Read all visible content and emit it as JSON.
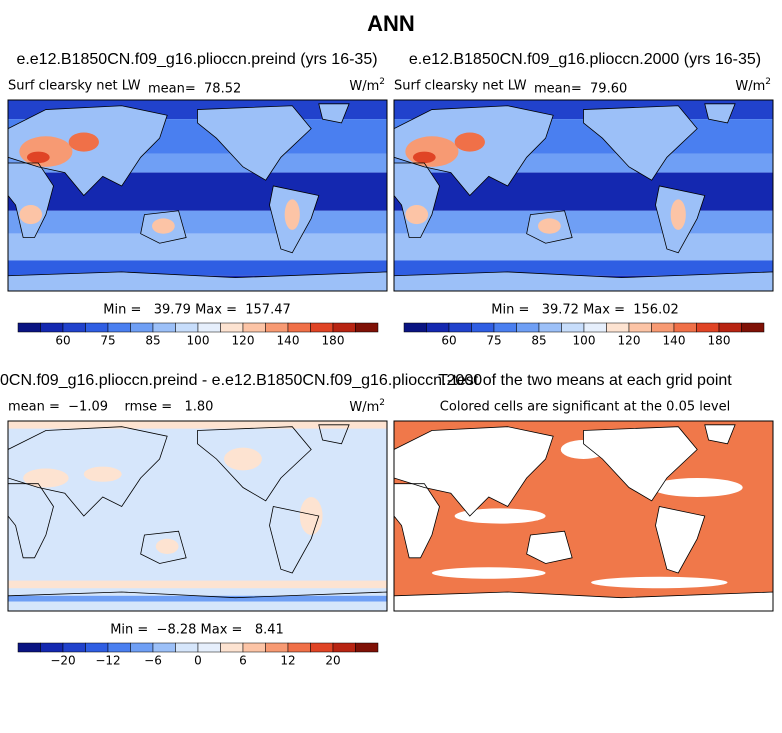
{
  "title": "ANN",
  "panels": [
    {
      "title": "e.e12.B1850CN.f09_g16.plioccn.preind (yrs 16-35)",
      "variable": "Surf clearsky net LW",
      "stats": "mean=  78.52",
      "units": {
        "base": "W/m",
        "exp": "2"
      },
      "range": "Min =   39.79 Max =  157.47",
      "colorbar": {
        "colors": [
          "#0a1482",
          "#1428b0",
          "#2142cc",
          "#2f5ee3",
          "#4a7ff0",
          "#6f9ff5",
          "#9cc0f8",
          "#c7ddfb",
          "#e6effc",
          "#fde3d1",
          "#fcc4a6",
          "#f79a73",
          "#f07048",
          "#e04425",
          "#b82412",
          "#7f1106"
        ],
        "labels": [
          "60",
          "75",
          "85",
          "100",
          "120",
          "140",
          "180"
        ]
      }
    },
    {
      "title": "e.e12.B1850CN.f09_g16.plioccn.2000 (yrs 16-35)",
      "variable": "Surf clearsky net LW",
      "stats": "mean=  79.60",
      "units": {
        "base": "W/m",
        "exp": "2"
      },
      "range": "Min =   39.72 Max =  156.02",
      "colorbar": {
        "colors": [
          "#0a1482",
          "#1428b0",
          "#2142cc",
          "#2f5ee3",
          "#4a7ff0",
          "#6f9ff5",
          "#9cc0f8",
          "#c7ddfb",
          "#e6effc",
          "#fde3d1",
          "#fcc4a6",
          "#f79a73",
          "#f07048",
          "#e04425",
          "#b82412",
          "#7f1106"
        ],
        "labels": [
          "60",
          "75",
          "85",
          "100",
          "120",
          "140",
          "180"
        ]
      }
    },
    {
      "title": "0CN.f09_g16.plioccn.preind - e.e12.B1850CN.f09_g16.plioccn.2000",
      "stats": "mean =  −1.09    rmse =   1.80",
      "units": {
        "base": "W/m",
        "exp": "2"
      },
      "range": "Min =  −8.28 Max =   8.41",
      "colorbar": {
        "colors": [
          "#0a1482",
          "#1428b0",
          "#2142cc",
          "#2f5ee3",
          "#4a7ff0",
          "#6f9ff5",
          "#9cc0f8",
          "#d6e6fb",
          "#e6effc",
          "#fde3d1",
          "#fcc4a6",
          "#f79a73",
          "#f07048",
          "#e04425",
          "#b82412",
          "#7f1106"
        ],
        "labels": [
          "−20",
          "−12",
          "−6",
          "0",
          "6",
          "12",
          "20"
        ]
      }
    },
    {
      "title": "T-test of the two means at each grid point",
      "stats": "Colored cells are significant at the 0.05 level"
    }
  ]
}
